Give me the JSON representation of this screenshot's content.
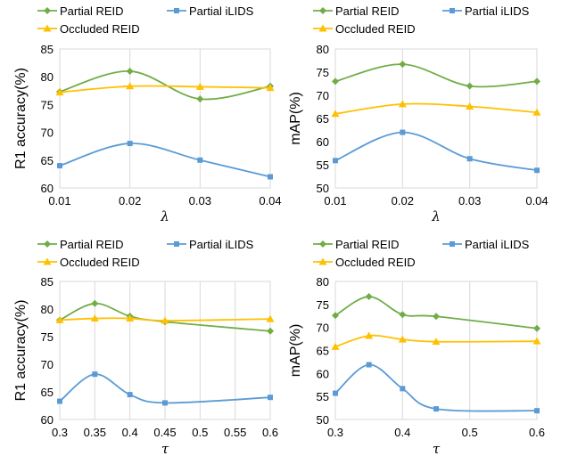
{
  "chart_data": [
    {
      "type": "line",
      "xlabel": "λ",
      "ylabel": "R1 accuracy(%)",
      "x": [
        0.01,
        0.02,
        0.03,
        0.04
      ],
      "xticks": [
        "0.01",
        "0.02",
        "0.03",
        "0.04"
      ],
      "ylim": [
        60,
        85
      ],
      "yticks": [
        60,
        65,
        70,
        75,
        80,
        85
      ],
      "grid": "vertical",
      "legend": "top",
      "series": [
        {
          "name": "Partial REID",
          "color": "#70ad47",
          "marker": "diamond",
          "values": [
            77.3,
            81.0,
            76.0,
            78.3
          ]
        },
        {
          "name": "Partial iLIDS",
          "color": "#5b9bd5",
          "marker": "square",
          "values": [
            64.0,
            68.0,
            65.0,
            62.0
          ]
        },
        {
          "name": "Occluded REID",
          "color": "#ffc000",
          "marker": "triangle",
          "values": [
            77.2,
            78.3,
            78.2,
            78.0
          ]
        }
      ]
    },
    {
      "type": "line",
      "xlabel": "λ",
      "ylabel": "mAP(%)",
      "x": [
        0.01,
        0.02,
        0.03,
        0.04
      ],
      "xticks": [
        "0.01",
        "0.02",
        "0.03",
        "0.04"
      ],
      "ylim": [
        50,
        80
      ],
      "yticks": [
        50,
        55,
        60,
        65,
        70,
        75,
        80
      ],
      "grid": "vertical",
      "legend": "top",
      "series": [
        {
          "name": "Partial REID",
          "color": "#70ad47",
          "marker": "diamond",
          "values": [
            73.0,
            76.7,
            72.0,
            73.0
          ]
        },
        {
          "name": "Partial iLIDS",
          "color": "#5b9bd5",
          "marker": "square",
          "values": [
            55.9,
            62.0,
            56.3,
            53.8
          ]
        },
        {
          "name": "Occluded REID",
          "color": "#ffc000",
          "marker": "triangle",
          "values": [
            66.0,
            68.1,
            67.6,
            66.3
          ]
        }
      ]
    },
    {
      "type": "line",
      "xlabel": "τ",
      "ylabel": "R1 accuracy(%)",
      "x": [
        0.3,
        0.35,
        0.4,
        0.45,
        0.6
      ],
      "xrange": [
        0.3,
        0.6
      ],
      "xticks": [
        "0.3",
        "0.35",
        "0.4",
        "0.45",
        "0.5",
        "0.55",
        "0.6"
      ],
      "xtickvals": [
        0.3,
        0.35,
        0.4,
        0.45,
        0.5,
        0.55,
        0.6
      ],
      "ylim": [
        60,
        85
      ],
      "yticks": [
        60,
        65,
        70,
        75,
        80,
        85
      ],
      "grid": "vertical",
      "legend": "top",
      "series": [
        {
          "name": "Partial REID",
          "color": "#70ad47",
          "marker": "diamond",
          "values": [
            78.0,
            81.0,
            78.7,
            77.7,
            76.0
          ]
        },
        {
          "name": "Partial iLIDS",
          "color": "#5b9bd5",
          "marker": "square",
          "values": [
            63.3,
            68.2,
            64.5,
            63.0,
            64.0
          ]
        },
        {
          "name": "Occluded REID",
          "color": "#ffc000",
          "marker": "triangle",
          "values": [
            78.0,
            78.3,
            78.3,
            77.9,
            78.2
          ]
        }
      ]
    },
    {
      "type": "line",
      "xlabel": "τ",
      "ylabel": "mAP(%)",
      "x": [
        0.3,
        0.35,
        0.4,
        0.45,
        0.6
      ],
      "xrange": [
        0.3,
        0.6
      ],
      "xticks": [
        "0.3",
        "0.4",
        "0.5",
        "0.6"
      ],
      "xtickvals": [
        0.3,
        0.4,
        0.5,
        0.6
      ],
      "ylim": [
        50,
        80
      ],
      "yticks": [
        50,
        55,
        60,
        65,
        70,
        75,
        80
      ],
      "grid": "vertical",
      "legend": "top",
      "series": [
        {
          "name": "Partial REID",
          "color": "#70ad47",
          "marker": "diamond",
          "values": [
            72.6,
            76.7,
            72.8,
            72.4,
            69.8
          ]
        },
        {
          "name": "Partial iLIDS",
          "color": "#5b9bd5",
          "marker": "square",
          "values": [
            55.7,
            61.9,
            56.7,
            52.3,
            51.9
          ]
        },
        {
          "name": "Occluded REID",
          "color": "#ffc000",
          "marker": "triangle",
          "values": [
            65.8,
            68.2,
            67.4,
            66.9,
            67.0
          ]
        }
      ]
    }
  ]
}
